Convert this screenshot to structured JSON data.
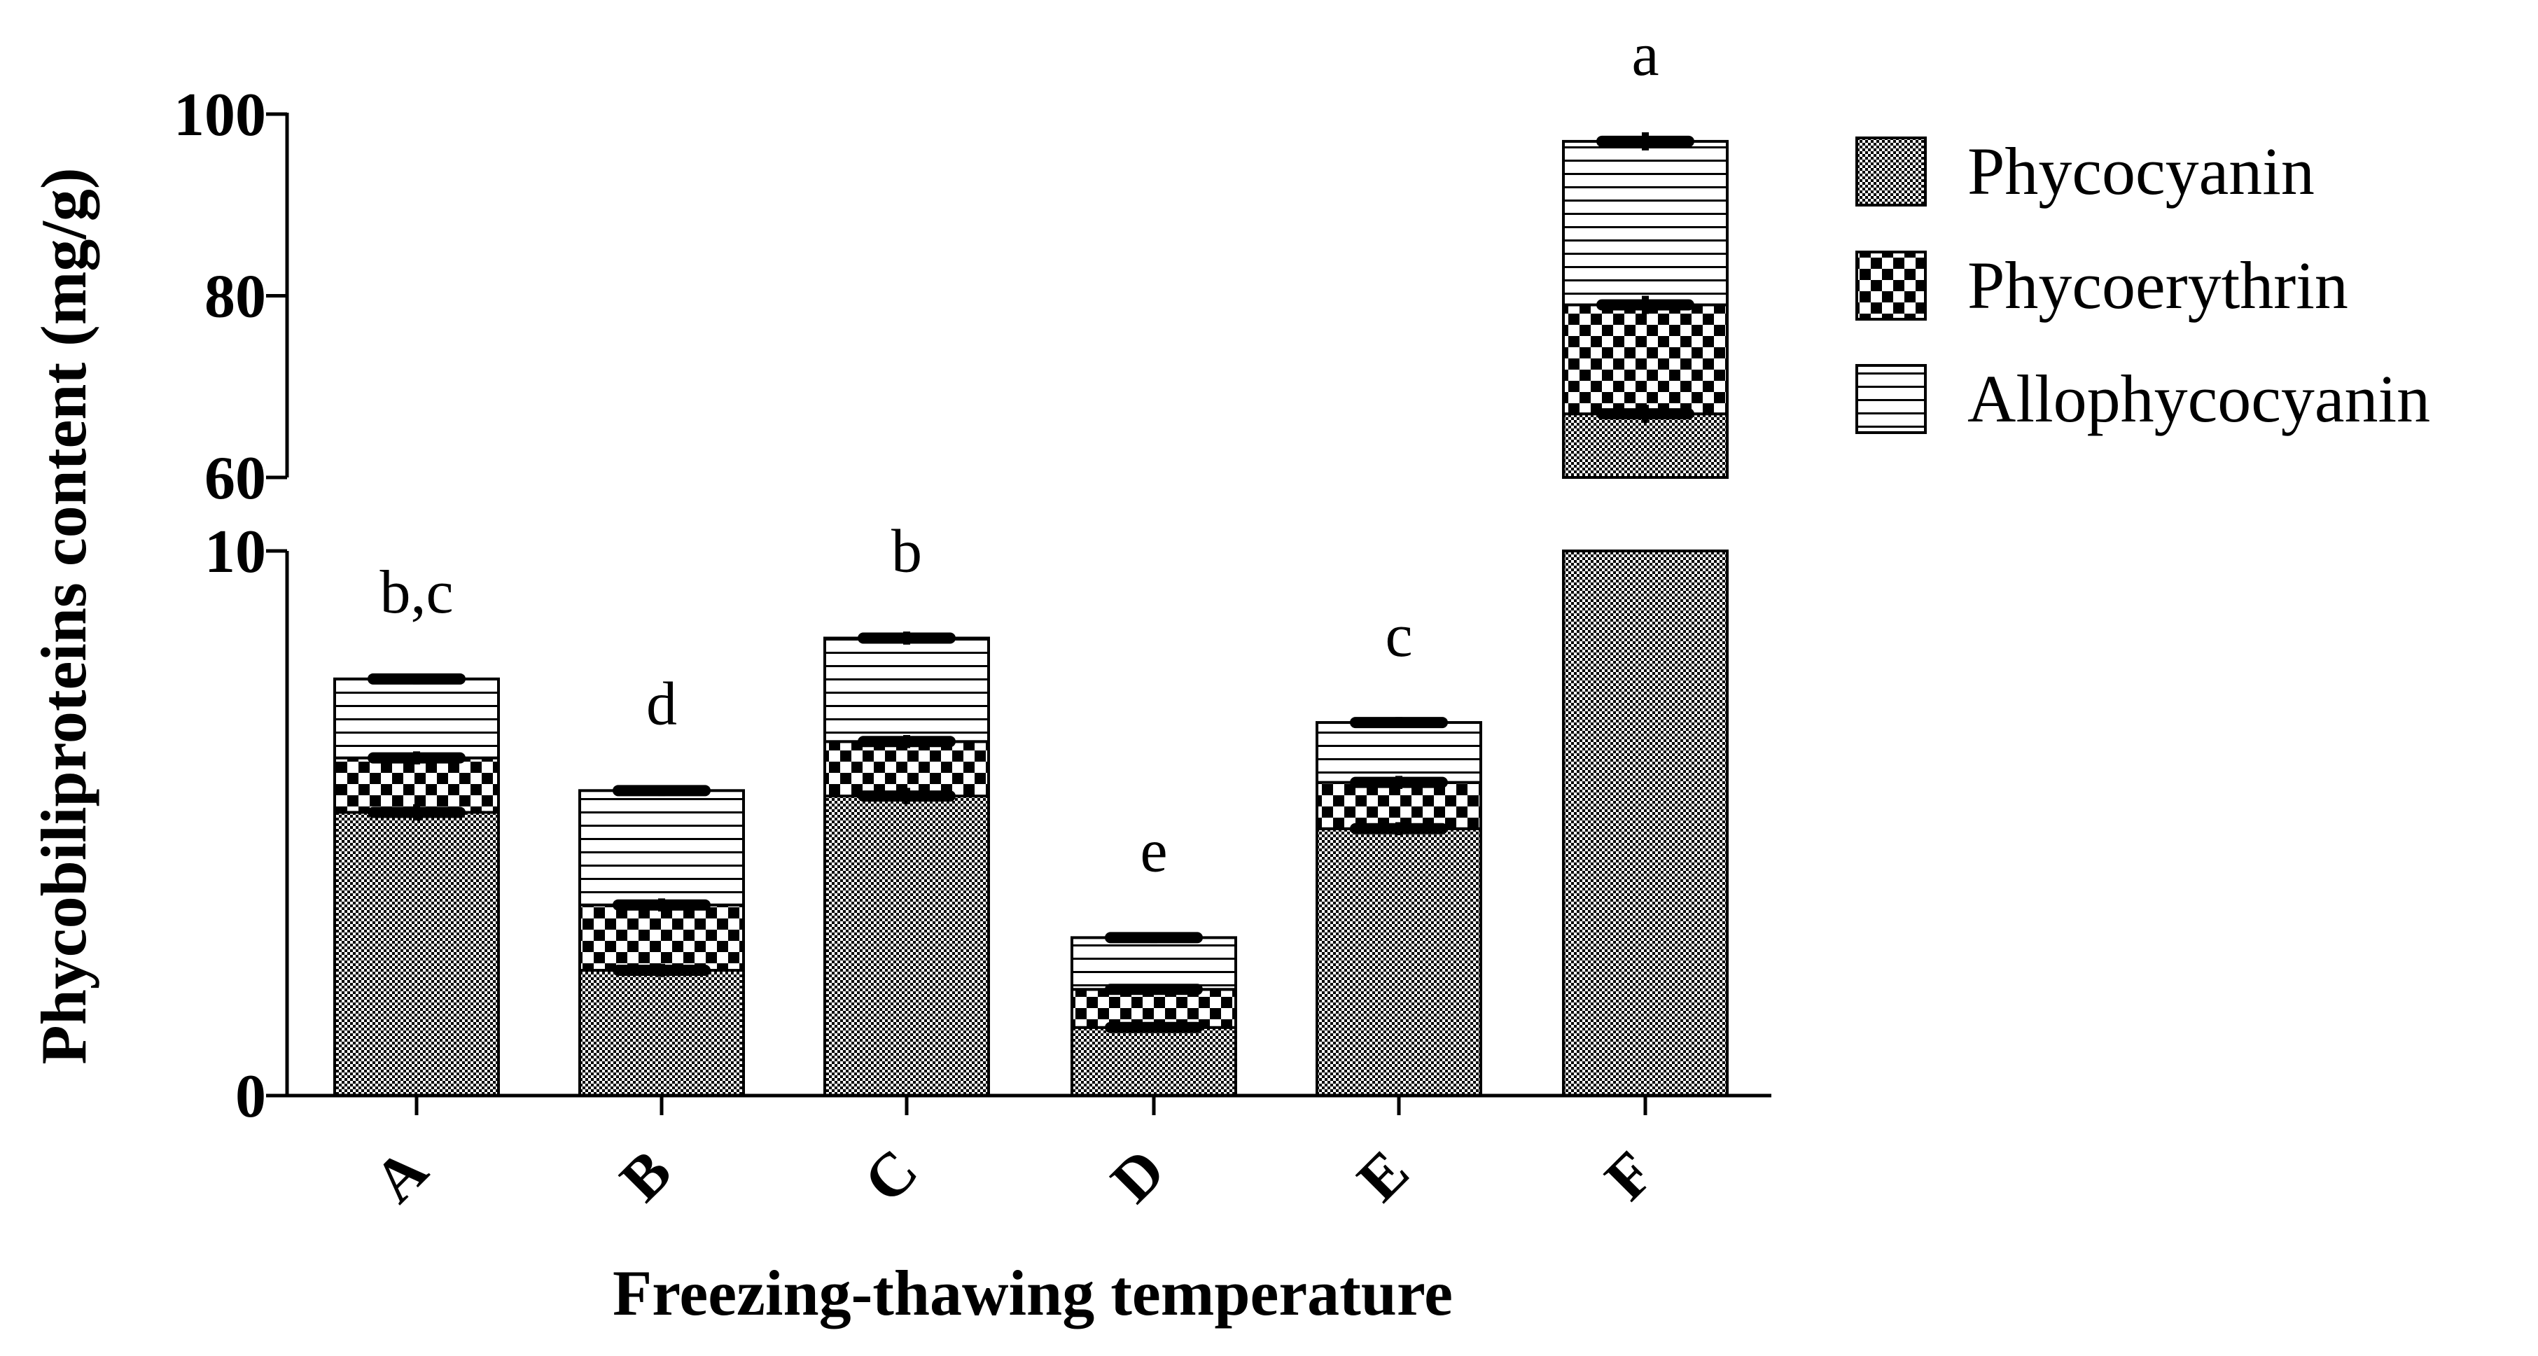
{
  "chart_data": {
    "type": "bar",
    "stacked": true,
    "broken_y_axis": true,
    "title": "",
    "xlabel": "Freezing-thawing temperature",
    "ylabel": "Phycobiliproteins content (mg/g)",
    "categories": [
      "A",
      "B",
      "C",
      "D",
      "E",
      "F"
    ],
    "series": [
      {
        "name": "Phycocyanin",
        "pattern": "fine-check",
        "values": [
          5.2,
          2.3,
          5.5,
          1.25,
          4.9,
          67
        ]
      },
      {
        "name": "Phycoerythrin",
        "pattern": "coarse-check",
        "values": [
          1.0,
          1.2,
          1.0,
          0.7,
          0.85,
          12
        ]
      },
      {
        "name": "Allophycocyanin",
        "pattern": "horizontal-lines",
        "values": [
          1.45,
          2.1,
          1.9,
          0.95,
          1.1,
          18
        ]
      }
    ],
    "error_bars": [
      [
        0.15,
        0.12,
        0.15,
        0.1,
        0.12,
        1.0
      ],
      [
        0.12,
        0.12,
        0.12,
        0.1,
        0.12,
        1.0
      ],
      [
        0.1,
        0.1,
        0.12,
        0.1,
        0.1,
        1.0
      ]
    ],
    "significance_labels": [
      "b,c",
      "d",
      "b",
      "e",
      "c",
      "a"
    ],
    "y_segments": [
      {
        "range": [
          0,
          10
        ],
        "ticks": [
          0,
          10
        ],
        "tick_labels": [
          "0",
          "10"
        ]
      },
      {
        "range": [
          60,
          100
        ],
        "ticks": [
          60,
          80,
          100
        ],
        "tick_labels": [
          "60",
          "80",
          "100"
        ]
      }
    ],
    "legend": {
      "position": "top-right"
    }
  },
  "colors": {
    "ink": "#000000",
    "background": "#ffffff"
  }
}
